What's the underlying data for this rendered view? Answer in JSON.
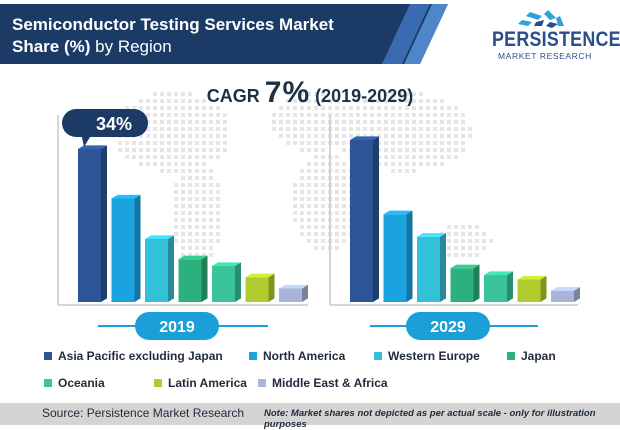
{
  "header": {
    "title_bold": "Semiconductor Testing Services Market",
    "title_bold_2": "Share (%)",
    "title_rest": " by Region"
  },
  "logo": {
    "name": "PERSISTENCE",
    "sub": "MARKET RESEARCH"
  },
  "cagr": {
    "prefix": "CAGR ",
    "value": "7%",
    "period": " (2019-2029)"
  },
  "chart_data": {
    "type": "bar",
    "categories": [
      "Asia Pacific excluding Japan",
      "North America",
      "Western Europe",
      "Japan",
      "Oceania",
      "Latin America",
      "Middle East & Africa"
    ],
    "series": [
      {
        "name": "2019",
        "values": [
          34,
          23,
          14,
          9.5,
          8,
          5.5,
          3
        ]
      },
      {
        "name": "2029",
        "values": [
          36,
          19.5,
          14.5,
          7.5,
          6,
          5,
          2.5
        ]
      }
    ],
    "ylim": [
      0,
      40
    ],
    "annotation": "34%",
    "legend_position": "bottom"
  },
  "colors": [
    "#2b5597",
    "#1aa3df",
    "#33c1d9",
    "#2cb07c",
    "#39c49a",
    "#b1cc2e",
    "#a9b5d8"
  ],
  "legend": [
    {
      "label": "Asia Pacific excluding Japan"
    },
    {
      "label": "North America"
    },
    {
      "label": "Western Europe"
    },
    {
      "label": "Japan"
    },
    {
      "label": "Oceania"
    },
    {
      "label": "Latin America"
    },
    {
      "label": "Middle East & Africa"
    }
  ],
  "footer": {
    "source": "Source: Persistence Market Research",
    "note": "Note: Market shares not depicted as per actual scale - only for illustration purposes"
  }
}
